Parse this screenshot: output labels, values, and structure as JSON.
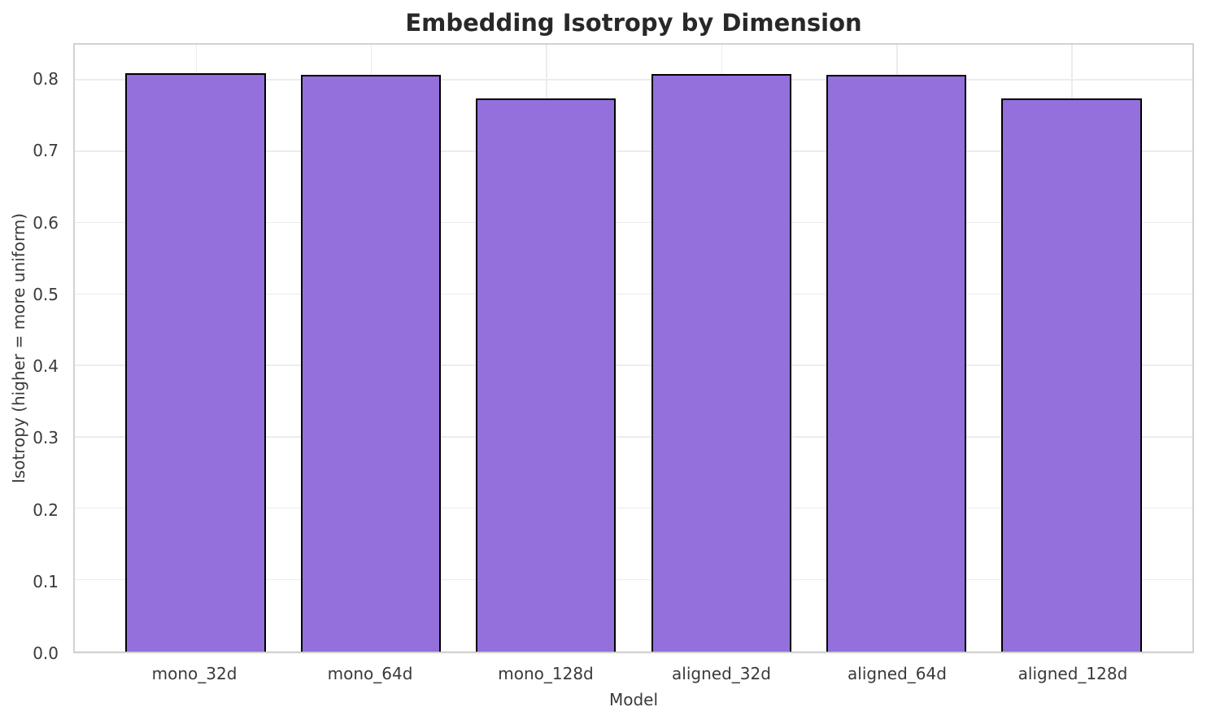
{
  "chart_data": {
    "type": "bar",
    "title": "Embedding Isotropy by Dimension",
    "xlabel": "Model",
    "ylabel": "Isotropy (higher = more uniform)",
    "categories": [
      "mono_32d",
      "mono_64d",
      "mono_128d",
      "aligned_32d",
      "aligned_64d",
      "aligned_128d"
    ],
    "values": [
      0.81,
      0.808,
      0.775,
      0.809,
      0.808,
      0.775
    ],
    "ylim": [
      0,
      0.85
    ],
    "yticks": [
      0.0,
      0.1,
      0.2,
      0.3,
      0.4,
      0.5,
      0.6,
      0.7,
      0.8
    ],
    "ytick_labels": [
      "0.0",
      "0.1",
      "0.2",
      "0.3",
      "0.4",
      "0.5",
      "0.6",
      "0.7",
      "0.8"
    ],
    "grid": true,
    "legend": "none",
    "bar_color": "#9370DB",
    "bar_edge_color": "#000000",
    "bar_width_fraction": 0.8,
    "grid_color": "#ececec",
    "spine_color": "#d2d2d2",
    "text_color": "#3a3a3a"
  }
}
